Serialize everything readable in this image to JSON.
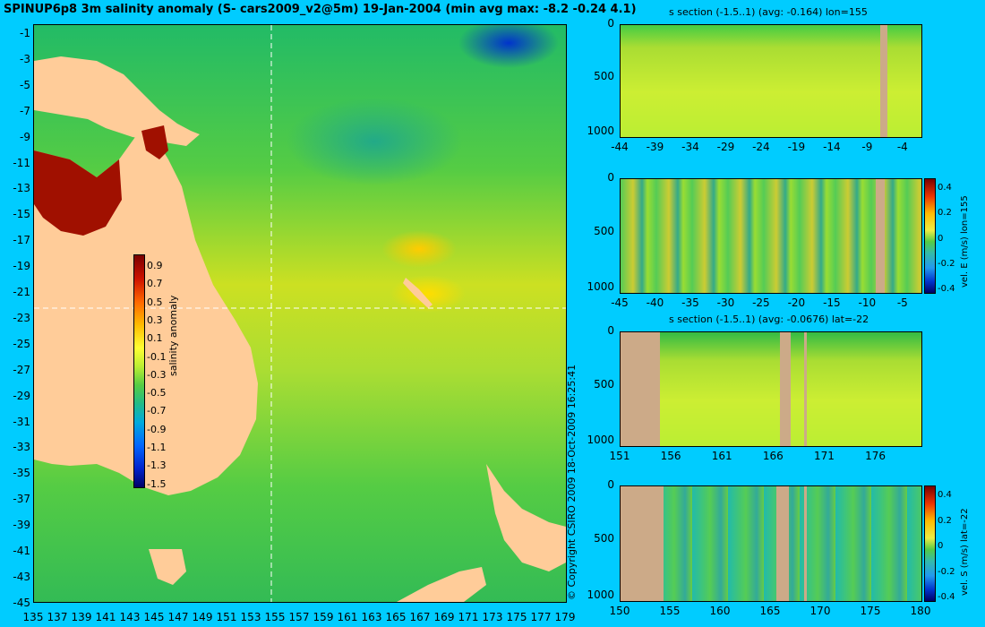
{
  "title": "SPINUP6p8 3m salinity anomaly (S- cars2009_v2@5m) 19-Jan-2004 (min avg max: -8.2 -0.24 4.1)",
  "map": {
    "lat_ticks": [
      "-1",
      "-3",
      "-5",
      "-7",
      "-9",
      "-11",
      "-13",
      "-15",
      "-17",
      "-19",
      "-21",
      "-23",
      "-25",
      "-27",
      "-29",
      "-31",
      "-33",
      "-35",
      "-37",
      "-39",
      "-41",
      "-43",
      "-45"
    ],
    "lon_ticks": [
      "135",
      "137",
      "139",
      "141",
      "143",
      "145",
      "147",
      "149",
      "151",
      "153",
      "155",
      "157",
      "159",
      "161",
      "163",
      "165",
      "167",
      "169",
      "171",
      "173",
      "175",
      "177",
      "179"
    ],
    "colorbar": {
      "ticks": [
        "0.9",
        "0.7",
        "0.5",
        "0.3",
        "0.1",
        "-0.1",
        "-0.3",
        "-0.5",
        "-0.7",
        "-0.9",
        "-1.1",
        "-1.3",
        "-1.5"
      ],
      "label": "salinity anomaly"
    }
  },
  "copyright": "© Copyright CSIRO 2009   18-Oct-2009 16:25:41",
  "panels": [
    {
      "title": "s section (-1.5..1) (avg: -0.164) lon=155",
      "y_ticks": [
        "0",
        "500",
        "1000"
      ],
      "x_ticks": [
        "-44",
        "-39",
        "-34",
        "-29",
        "-24",
        "-19",
        "-14",
        "-9",
        "-4"
      ]
    },
    {
      "title": "",
      "y_ticks": [
        "0",
        "500",
        "1000"
      ],
      "x_ticks": [
        "-45",
        "-40",
        "-35",
        "-30",
        "-25",
        "-20",
        "-15",
        "-10",
        "-5"
      ],
      "colorbar_ticks": [
        "0.4",
        "0.2",
        "0",
        "-0.2",
        "-0.4"
      ],
      "colorbar_label": "vel. E (m/s) lon=155"
    },
    {
      "title": "s section (-1.5..1) (avg: -0.0676) lat=-22",
      "y_ticks": [
        "0",
        "500",
        "1000"
      ],
      "x_ticks": [
        "151",
        "156",
        "161",
        "166",
        "171",
        "176"
      ]
    },
    {
      "title": "",
      "y_ticks": [
        "0",
        "500",
        "1000"
      ],
      "x_ticks": [
        "150",
        "155",
        "160",
        "165",
        "170",
        "175",
        "180"
      ],
      "colorbar_ticks": [
        "0.4",
        "0.2",
        "0",
        "-0.2",
        "-0.4"
      ],
      "colorbar_label": "vel. S (m/s) lat=-22"
    }
  ]
}
